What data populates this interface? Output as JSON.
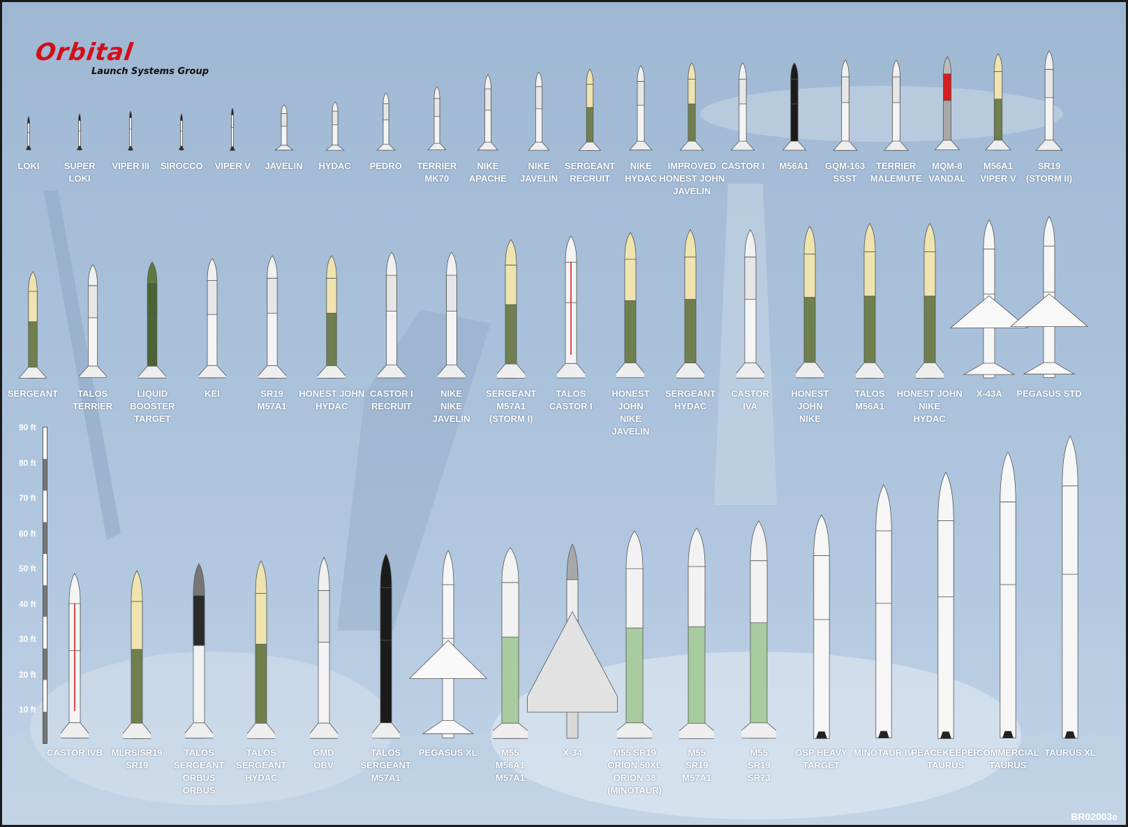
{
  "logo": {
    "wordmark": "Orbital",
    "subtitle": "Launch Systems Group",
    "brand_color": "#d0101b"
  },
  "document_code": "BR02003e",
  "scale": {
    "unit": "ft",
    "ticks": [
      "90 ft",
      "80 ft",
      "70 ft",
      "60 ft",
      "50 ft",
      "40 ft",
      "30 ft",
      "20 ft",
      "10 ft"
    ]
  },
  "rows": [
    {
      "vehicles": [
        {
          "lines": [
            "LOKI"
          ],
          "style": "tiny",
          "length_ft": 12
        },
        {
          "lines": [
            "SUPER",
            "LOKI"
          ],
          "style": "tiny",
          "length_ft": 13
        },
        {
          "lines": [
            "VIPER III"
          ],
          "style": "tiny",
          "length_ft": 14
        },
        {
          "lines": [
            "SIROCCO"
          ],
          "style": "tiny",
          "length_ft": 13
        },
        {
          "lines": [
            "VIPER V"
          ],
          "style": "tiny",
          "length_ft": 15
        },
        {
          "lines": [
            "JAVELIN"
          ],
          "style": "white",
          "length_ft": 16
        },
        {
          "lines": [
            "HYDAC"
          ],
          "style": "white",
          "length_ft": 17
        },
        {
          "lines": [
            "PEDRO"
          ],
          "style": "white",
          "length_ft": 20
        },
        {
          "lines": [
            "TERRIER",
            "MK70"
          ],
          "style": "white",
          "length_ft": 22
        },
        {
          "lines": [
            "NIKE",
            "APACHE"
          ],
          "style": "white",
          "length_ft": 26
        },
        {
          "lines": [
            "NIKE",
            "JAVELIN"
          ],
          "style": "white",
          "length_ft": 27
        },
        {
          "lines": [
            "SERGEANT",
            "RECRUIT"
          ],
          "style": "green",
          "length_ft": 28
        },
        {
          "lines": [
            "NIKE",
            "HYDAC"
          ],
          "style": "white",
          "length_ft": 29
        },
        {
          "lines": [
            "IMPROVED",
            "HONEST JOHN",
            "JAVELIN"
          ],
          "style": "green",
          "length_ft": 30
        },
        {
          "lines": [
            "CASTOR I"
          ],
          "style": "white",
          "length_ft": 30
        },
        {
          "lines": [
            "M56A1"
          ],
          "style": "black",
          "length_ft": 30
        },
        {
          "lines": [
            "GQM-163",
            "SSST"
          ],
          "style": "white",
          "length_ft": 31
        },
        {
          "lines": [
            "TERRIER",
            "MALEMUTE"
          ],
          "style": "white",
          "length_ft": 31
        },
        {
          "lines": [
            "MQM-8",
            "VANDAL"
          ],
          "style": "vandal",
          "length_ft": 32
        },
        {
          "lines": [
            "M56A1",
            "VIPER V"
          ],
          "style": "green",
          "length_ft": 33
        },
        {
          "lines": [
            "SR19",
            "(STORM II)"
          ],
          "style": "white",
          "length_ft": 34
        }
      ]
    },
    {
      "vehicles": [
        {
          "lines": [
            "SERGEANT"
          ],
          "style": "green",
          "length_ft": 34
        },
        {
          "lines": [
            "TALOS",
            "TERRIER"
          ],
          "style": "white",
          "length_ft": 36
        },
        {
          "lines": [
            "LIQUID",
            "BOOSTER",
            "TARGET"
          ],
          "style": "darkgreen",
          "length_ft": 37
        },
        {
          "lines": [
            "KEI"
          ],
          "style": "white",
          "length_ft": 38
        },
        {
          "lines": [
            "SR19",
            "M57A1"
          ],
          "style": "white",
          "length_ft": 39
        },
        {
          "lines": [
            "HONEST JOHN",
            "HYDAC"
          ],
          "style": "green",
          "length_ft": 39
        },
        {
          "lines": [
            "CASTOR I",
            "RECRUIT"
          ],
          "style": "white",
          "length_ft": 40
        },
        {
          "lines": [
            "NIKE",
            "NIKE",
            "JAVELIN"
          ],
          "style": "white",
          "length_ft": 40
        },
        {
          "lines": [
            "SERGEANT",
            "M57A1",
            "(STORM I)"
          ],
          "style": "green",
          "length_ft": 44
        },
        {
          "lines": [
            "TALOS",
            "CASTOR I"
          ],
          "style": "redstripe",
          "length_ft": 45
        },
        {
          "lines": [
            "HONEST",
            "JOHN",
            "NIKE",
            "JAVELIN"
          ],
          "style": "green",
          "length_ft": 46
        },
        {
          "lines": [
            "SERGEANT",
            "HYDAC"
          ],
          "style": "green",
          "length_ft": 47
        },
        {
          "lines": [
            "CASTOR",
            "IVA"
          ],
          "style": "white",
          "length_ft": 47
        },
        {
          "lines": [
            "HONEST",
            "JOHN",
            "NIKE"
          ],
          "style": "green",
          "length_ft": 48
        },
        {
          "lines": [
            "TALOS",
            "M56A1"
          ],
          "style": "green",
          "length_ft": 49
        },
        {
          "lines": [
            "HONEST JOHN",
            "NIKE",
            "HYDAC"
          ],
          "style": "green",
          "length_ft": 49
        },
        {
          "lines": [
            "X-43A"
          ],
          "style": "winged",
          "length_ft": 50
        },
        {
          "lines": [
            "PEGASUS STD"
          ],
          "style": "winged",
          "length_ft": 51
        }
      ]
    },
    {
      "vehicles": [
        {
          "lines": [
            "CASTOR IVB"
          ],
          "style": "redstripe",
          "length_ft": 51
        },
        {
          "lines": [
            "MLRS/SR19",
            "SR19"
          ],
          "style": "green",
          "length_ft": 52
        },
        {
          "lines": [
            "TALOS",
            "SERGEANT",
            "ORBUS",
            "ORBUS"
          ],
          "style": "gray",
          "length_ft": 54
        },
        {
          "lines": [
            "TALOS",
            "SERGEANT",
            "HYDAC"
          ],
          "style": "green",
          "length_ft": 55
        },
        {
          "lines": [
            "GMD",
            "OBV"
          ],
          "style": "white",
          "length_ft": 56
        },
        {
          "lines": [
            "TALOS",
            "SERGEANT",
            "M57A1"
          ],
          "style": "black",
          "length_ft": 57
        },
        {
          "lines": [
            "PEGASUS XL"
          ],
          "style": "winged",
          "length_ft": 58
        },
        {
          "lines": [
            "M55",
            "M56A1",
            "M57A1"
          ],
          "style": "lightgreen",
          "length_ft": 59
        },
        {
          "lines": [
            "X-34"
          ],
          "style": "x34",
          "length_ft": 60
        },
        {
          "lines": [
            "M55 SR19",
            "ORION 50XL",
            "ORION 38",
            "(MINOTAUR)"
          ],
          "style": "lightgreen",
          "length_ft": 64
        },
        {
          "lines": [
            "M55",
            "SR19",
            "M57A1"
          ],
          "style": "lightgreen",
          "length_ft": 65
        },
        {
          "lines": [
            "M55",
            "SR19",
            "SR73"
          ],
          "style": "lightgreen",
          "length_ft": 67
        },
        {
          "lines": [
            "OSP HEAVY",
            "TARGET"
          ],
          "style": "heavy",
          "length_ft": 69
        },
        {
          "lines": [
            "MINOTAUR IV"
          ],
          "style": "heavy",
          "length_ft": 78
        },
        {
          "lines": [
            "PEACEKEEPER",
            "TAURUS"
          ],
          "style": "taurus",
          "length_ft": 82
        },
        {
          "lines": [
            "COMMERCIAL",
            "TAURUS"
          ],
          "style": "taurus",
          "length_ft": 88
        },
        {
          "lines": [
            "TAURUS XL"
          ],
          "style": "taurus",
          "length_ft": 93
        }
      ]
    }
  ]
}
